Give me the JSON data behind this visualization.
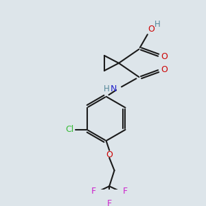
{
  "background_color": "#dde5ea",
  "bond_color": "#1a1a1a",
  "atom_colors": {
    "O": "#cc0000",
    "N": "#2222cc",
    "Cl": "#33bb33",
    "F": "#cc22cc",
    "H": "#558899",
    "C": "#1a1a1a"
  },
  "figsize": [
    3.0,
    3.0
  ],
  "dpi": 100
}
